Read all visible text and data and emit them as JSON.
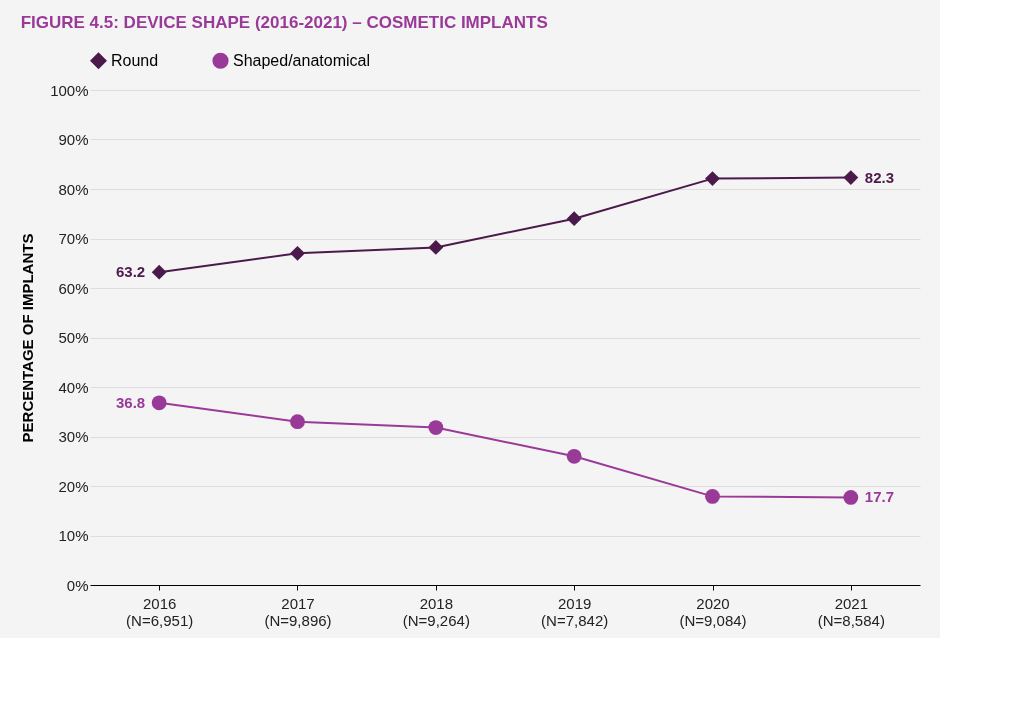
{
  "chart_data": {
    "type": "line",
    "title": "FIGURE 4.5: DEVICE SHAPE (2016-2021) – COSMETIC IMPLANTS",
    "ylabel": "PERCENTAGE OF IMPLANTS",
    "categories": [
      "2016\n(N=6,951)",
      "2017\n(N=9,896)",
      "2018\n(N=9,264)",
      "2019\n(N=7,842)",
      "2020\n(N=9,084)",
      "2021\n(N=8,584)"
    ],
    "series": [
      {
        "name": "Round",
        "color": "#4b1a4b",
        "marker": "diamond",
        "values": [
          63.2,
          67.0,
          68.2,
          74.0,
          82.1,
          82.3
        ],
        "value_labels": [
          "63.2",
          null,
          null,
          null,
          null,
          "82.3"
        ]
      },
      {
        "name": "Shaped/anatomical",
        "color": "#9a3a98",
        "marker": "circle",
        "values": [
          36.8,
          33.0,
          31.8,
          26.0,
          17.9,
          17.7
        ],
        "value_labels": [
          "36.8",
          null,
          null,
          null,
          null,
          "17.7"
        ]
      }
    ],
    "ylim": [
      0,
      100
    ],
    "yticks": [
      {
        "value": 0,
        "label": "0%"
      },
      {
        "value": 10,
        "label": "10%"
      },
      {
        "value": 20,
        "label": "20%"
      },
      {
        "value": 30,
        "label": "30%"
      },
      {
        "value": 40,
        "label": "40%"
      },
      {
        "value": 50,
        "label": "50%"
      },
      {
        "value": 60,
        "label": "60%"
      },
      {
        "value": 70,
        "label": "70%"
      },
      {
        "value": 80,
        "label": "80%"
      },
      {
        "value": 90,
        "label": "90%"
      },
      {
        "value": 100,
        "label": "100%"
      }
    ],
    "grid": "y",
    "legend": "top",
    "line_style": "solid"
  }
}
